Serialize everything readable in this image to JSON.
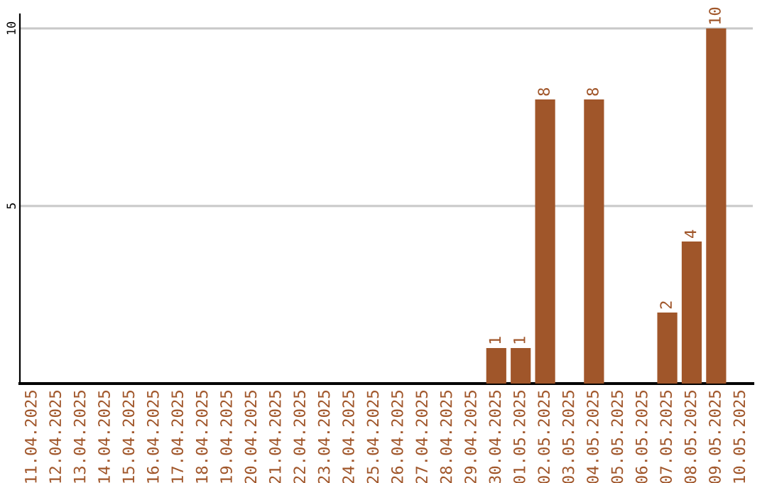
{
  "chart_data": {
    "type": "bar",
    "categories": [
      "11.04.2025",
      "12.04.2025",
      "13.04.2025",
      "14.04.2025",
      "15.04.2025",
      "16.04.2025",
      "17.04.2025",
      "18.04.2025",
      "19.04.2025",
      "20.04.2025",
      "21.04.2025",
      "22.04.2025",
      "23.04.2025",
      "24.04.2025",
      "25.04.2025",
      "26.04.2025",
      "27.04.2025",
      "28.04.2025",
      "29.04.2025",
      "30.04.2025",
      "01.05.2025",
      "02.05.2025",
      "03.05.2025",
      "04.05.2025",
      "05.05.2025",
      "06.05.2025",
      "07.05.2025",
      "08.05.2025",
      "09.05.2025",
      "10.05.2025"
    ],
    "values": [
      null,
      null,
      null,
      null,
      null,
      null,
      null,
      null,
      null,
      null,
      null,
      null,
      null,
      null,
      null,
      null,
      null,
      null,
      null,
      1,
      1,
      8,
      null,
      8,
      null,
      null,
      2,
      4,
      10,
      null
    ],
    "color": "#a0562a",
    "ylim": [
      0,
      10.4
    ],
    "yticks": [
      5,
      10
    ],
    "grid": "y",
    "data_labels": true
  }
}
